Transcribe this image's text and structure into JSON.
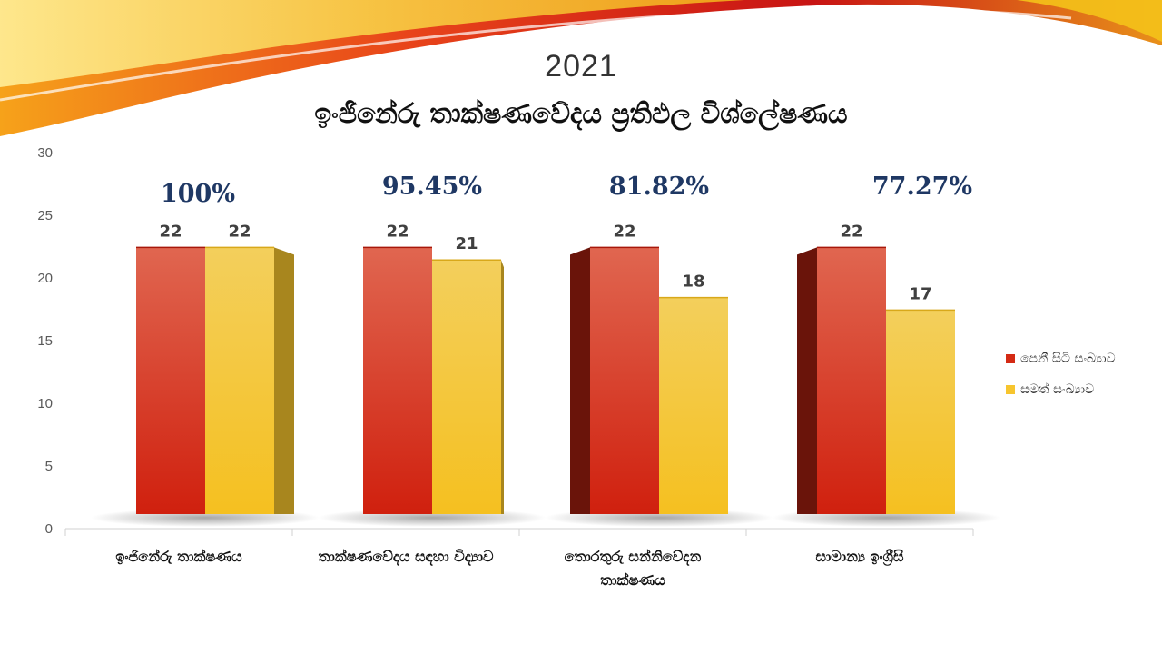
{
  "slide": {
    "year": "2021",
    "title": "ඉංජිනේරු තාක්ෂණවේදය ප්‍රතිඵල විශ්ලේෂණය"
  },
  "colors": {
    "red": "#d42a14",
    "yellow": "#f7c52e",
    "pct_text": "#1f3864"
  },
  "chart_data": {
    "type": "bar",
    "categories": [
      "ඉංජිනේරු තාක්ෂණය",
      "තාක්ෂණවේදය සඳහා විද්‍යාව",
      "තොරතුරු සන්නිවේදන තාක්ෂණය",
      "සාමාන්‍ය ඉංග්‍රීසි"
    ],
    "series": [
      {
        "name": "පෙනී සිටි සංඛ්‍යාව",
        "values": [
          22,
          22,
          22,
          22
        ]
      },
      {
        "name": "සමත් සංඛ්‍යාව",
        "values": [
          22,
          21,
          18,
          17
        ]
      }
    ],
    "percent_labels": [
      "100%",
      "95.45%",
      "81.82%",
      "77.27%"
    ],
    "yticks": [
      0,
      5,
      10,
      15,
      20,
      25,
      30
    ],
    "ylim": [
      0,
      30
    ],
    "legend": "right",
    "grid": false
  }
}
